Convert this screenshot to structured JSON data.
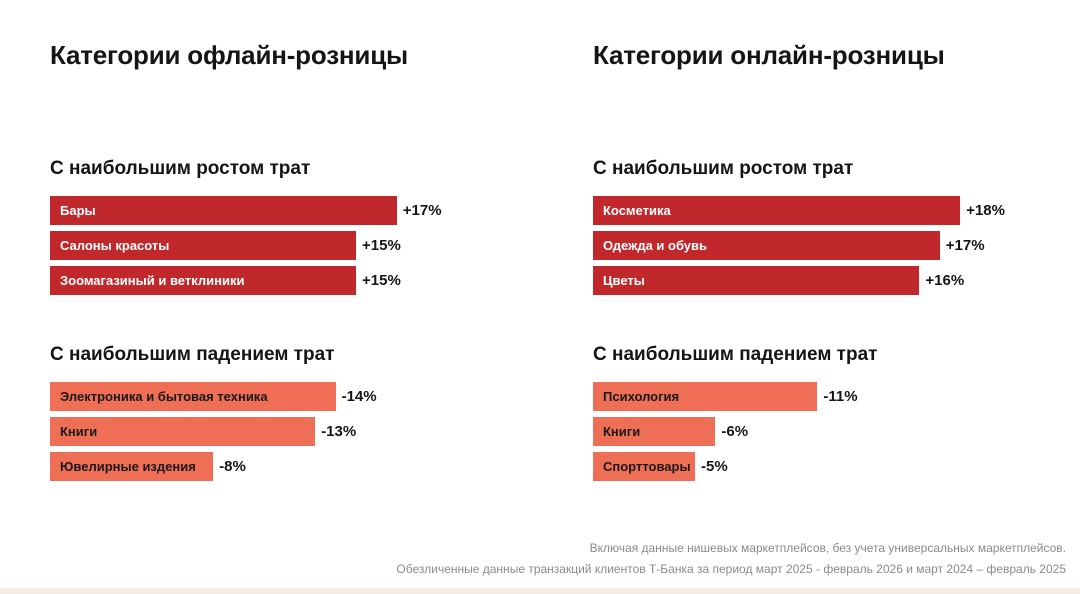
{
  "chart_data": [
    {
      "type": "bar",
      "orientation": "horizontal",
      "title": "Категории офлайн-розницы",
      "groups": [
        {
          "title": "С наибольшим ростом трат",
          "color": "#c0282b",
          "categories": [
            "Бары",
            "Салоны красоты",
            "Зоомагазиный и ветклиники"
          ],
          "values": [
            17,
            15,
            15
          ],
          "value_labels": [
            "+17%",
            "+15%",
            "+15%"
          ]
        },
        {
          "title": "С наибольшим падением трат",
          "color": "#ee6e56",
          "categories": [
            "Электроника и бытовая техника",
            "Книги",
            "Ювелирные издения"
          ],
          "values": [
            -14,
            -13,
            -8
          ],
          "value_labels": [
            "-14%",
            "-13%",
            "-8%"
          ]
        }
      ]
    },
    {
      "type": "bar",
      "orientation": "horizontal",
      "title": "Категории онлайн-розницы",
      "groups": [
        {
          "title": "С наибольшим ростом трат",
          "color": "#c0282b",
          "categories": [
            "Косметика",
            "Одежда и обувь",
            "Цветы"
          ],
          "values": [
            18,
            17,
            16
          ],
          "value_labels": [
            "+18%",
            "+17%",
            "+16%"
          ]
        },
        {
          "title": "С наибольшим падением трат",
          "color": "#ee6e56",
          "categories": [
            "Психология",
            "Книги",
            "Спорттовары"
          ],
          "values": [
            -11,
            -6,
            -5
          ],
          "value_labels": [
            "-11%",
            "-6%",
            "-5%"
          ]
        }
      ]
    }
  ],
  "footnote": {
    "line1": "Включая данные нишевых маркетплейсов, без учета универсальных маркетплейсов.",
    "line2": "Обезличенные данные транзакций клиентов Т-Банка за период март 2025 - февраль 2026 и март 2024 – февраль 2025"
  }
}
